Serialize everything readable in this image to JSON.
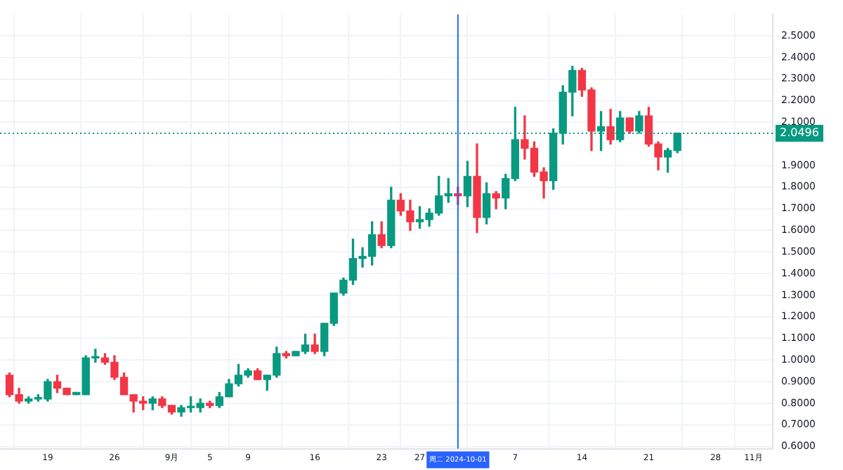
{
  "chart_data": {
    "type": "candlestick",
    "x": [
      "2024-08-15",
      "2024-08-16",
      "2024-08-17",
      "2024-08-18",
      "2024-08-19",
      "2024-08-20",
      "2024-08-21",
      "2024-08-22",
      "2024-08-23",
      "2024-08-24",
      "2024-08-25",
      "2024-08-26",
      "2024-08-27",
      "2024-08-28",
      "2024-08-29",
      "2024-08-30",
      "2024-08-31",
      "2024-09-01",
      "2024-09-02",
      "2024-09-03",
      "2024-09-04",
      "2024-09-05",
      "2024-09-06",
      "2024-09-07",
      "2024-09-08",
      "2024-09-09",
      "2024-09-10",
      "2024-09-11",
      "2024-09-12",
      "2024-09-13",
      "2024-09-14",
      "2024-09-15",
      "2024-09-16",
      "2024-09-17",
      "2024-09-18",
      "2024-09-19",
      "2024-09-20",
      "2024-09-21",
      "2024-09-22",
      "2024-09-23",
      "2024-09-24",
      "2024-09-25",
      "2024-09-26",
      "2024-09-27",
      "2024-09-28",
      "2024-09-29",
      "2024-09-30",
      "2024-10-01",
      "2024-10-02",
      "2024-10-03",
      "2024-10-04",
      "2024-10-05",
      "2024-10-06",
      "2024-10-07",
      "2024-10-08",
      "2024-10-09",
      "2024-10-10",
      "2024-10-11",
      "2024-10-12",
      "2024-10-13",
      "2024-10-14",
      "2024-10-15",
      "2024-10-16",
      "2024-10-17",
      "2024-10-18",
      "2024-10-19",
      "2024-10-20",
      "2024-10-21",
      "2024-10-22",
      "2024-10-23",
      "2024-10-24"
    ],
    "ohlc": [
      [
        0.93,
        0.94,
        0.83,
        0.84
      ],
      [
        0.84,
        0.87,
        0.8,
        0.81
      ],
      [
        0.81,
        0.83,
        0.8,
        0.82
      ],
      [
        0.82,
        0.84,
        0.81,
        0.82
      ],
      [
        0.82,
        0.91,
        0.81,
        0.9
      ],
      [
        0.9,
        0.93,
        0.85,
        0.87
      ],
      [
        0.87,
        0.87,
        0.84,
        0.84
      ],
      [
        0.84,
        0.85,
        0.84,
        0.85
      ],
      [
        0.84,
        1.02,
        0.84,
        1.01
      ],
      [
        1.01,
        1.05,
        0.99,
        1.01
      ],
      [
        1.01,
        1.03,
        0.98,
        0.99
      ],
      [
        0.99,
        1.02,
        0.91,
        0.92
      ],
      [
        0.92,
        0.94,
        0.84,
        0.84
      ],
      [
        0.84,
        0.84,
        0.76,
        0.81
      ],
      [
        0.81,
        0.83,
        0.77,
        0.8
      ],
      [
        0.8,
        0.83,
        0.77,
        0.82
      ],
      [
        0.82,
        0.83,
        0.78,
        0.79
      ],
      [
        0.79,
        0.79,
        0.75,
        0.76
      ],
      [
        0.76,
        0.79,
        0.74,
        0.78
      ],
      [
        0.78,
        0.83,
        0.76,
        0.78
      ],
      [
        0.78,
        0.82,
        0.76,
        0.8
      ],
      [
        0.8,
        0.81,
        0.78,
        0.79
      ],
      [
        0.79,
        0.85,
        0.78,
        0.83
      ],
      [
        0.83,
        0.91,
        0.83,
        0.89
      ],
      [
        0.89,
        0.98,
        0.88,
        0.93
      ],
      [
        0.93,
        0.96,
        0.92,
        0.95
      ],
      [
        0.95,
        0.96,
        0.91,
        0.91
      ],
      [
        0.91,
        0.93,
        0.86,
        0.93
      ],
      [
        0.93,
        1.06,
        0.92,
        1.03
      ],
      [
        1.03,
        1.04,
        1.01,
        1.02
      ],
      [
        1.02,
        1.04,
        1.02,
        1.04
      ],
      [
        1.04,
        1.12,
        1.03,
        1.07
      ],
      [
        1.07,
        1.12,
        1.03,
        1.04
      ],
      [
        1.04,
        1.17,
        1.02,
        1.17
      ],
      [
        1.17,
        1.31,
        1.16,
        1.31
      ],
      [
        1.31,
        1.38,
        1.3,
        1.37
      ],
      [
        1.37,
        1.56,
        1.35,
        1.47
      ],
      [
        1.47,
        1.52,
        1.43,
        1.48
      ],
      [
        1.48,
        1.64,
        1.44,
        1.58
      ],
      [
        1.58,
        1.64,
        1.52,
        1.53
      ],
      [
        1.53,
        1.8,
        1.52,
        1.74
      ],
      [
        1.74,
        1.77,
        1.67,
        1.69
      ],
      [
        1.69,
        1.74,
        1.6,
        1.64
      ],
      [
        1.64,
        1.71,
        1.61,
        1.65
      ],
      [
        1.65,
        1.7,
        1.62,
        1.68
      ],
      [
        1.68,
        1.85,
        1.67,
        1.76
      ],
      [
        1.76,
        1.84,
        1.73,
        1.77
      ],
      [
        1.77,
        1.8,
        1.72,
        1.76
      ],
      [
        1.76,
        1.92,
        1.71,
        1.85
      ],
      [
        1.85,
        2.0,
        1.59,
        1.66
      ],
      [
        1.66,
        1.82,
        1.63,
        1.77
      ],
      [
        1.77,
        1.78,
        1.7,
        1.75
      ],
      [
        1.75,
        1.86,
        1.7,
        1.84
      ],
      [
        1.84,
        2.17,
        1.83,
        2.02
      ],
      [
        2.02,
        2.13,
        1.93,
        1.98
      ],
      [
        1.98,
        2.01,
        1.85,
        1.87
      ],
      [
        1.87,
        1.89,
        1.75,
        1.83
      ],
      [
        1.83,
        2.07,
        1.79,
        2.05
      ],
      [
        2.05,
        2.27,
        2.0,
        2.24
      ],
      [
        2.24,
        2.36,
        2.13,
        2.34
      ],
      [
        2.34,
        2.35,
        2.22,
        2.25
      ],
      [
        2.25,
        2.26,
        1.97,
        2.06
      ],
      [
        2.06,
        2.15,
        1.97,
        2.08
      ],
      [
        2.08,
        2.16,
        2.0,
        2.02
      ],
      [
        2.02,
        2.15,
        2.01,
        2.12
      ],
      [
        2.12,
        2.12,
        2.05,
        2.06
      ],
      [
        2.06,
        2.15,
        2.05,
        2.13
      ],
      [
        2.13,
        2.17,
        1.99,
        2.0
      ],
      [
        2.0,
        2.01,
        1.88,
        1.94
      ],
      [
        1.94,
        1.98,
        1.87,
        1.97
      ],
      [
        1.97,
        2.05,
        1.96,
        2.05
      ]
    ],
    "colors": [
      "#f23645",
      "#f23645",
      "#089981",
      "#089981",
      "#089981",
      "#f23645",
      "#f23645",
      "#089981",
      "#089981",
      "#089981",
      "#f23645",
      "#f23645",
      "#f23645",
      "#f23645",
      "#f23645",
      "#089981",
      "#f23645",
      "#f23645",
      "#089981",
      "#089981",
      "#089981",
      "#f23645",
      "#089981",
      "#089981",
      "#089981",
      "#089981",
      "#f23645",
      "#089981",
      "#089981",
      "#f23645",
      "#089981",
      "#089981",
      "#f23645",
      "#089981",
      "#089981",
      "#089981",
      "#089981",
      "#089981",
      "#089981",
      "#f23645",
      "#089981",
      "#f23645",
      "#f23645",
      "#089981",
      "#089981",
      "#089981",
      "#089981",
      "#f23645",
      "#089981",
      "#f23645",
      "#089981",
      "#f23645",
      "#089981",
      "#089981",
      "#f23645",
      "#f23645",
      "#f23645",
      "#089981",
      "#089981",
      "#089981",
      "#f23645",
      "#f23645",
      "#089981",
      "#f23645",
      "#089981",
      "#f23645",
      "#089981",
      "#f23645",
      "#f23645",
      "#089981",
      "#089981"
    ],
    "xlim": [
      "2024-08-14",
      "2024-11-03"
    ],
    "xticks": [
      {
        "value": "2024-08-19",
        "label": "19"
      },
      {
        "value": "2024-08-26",
        "label": "26"
      },
      {
        "value": "2024-09-01",
        "label": "9月"
      },
      {
        "value": "2024-09-05",
        "label": "5"
      },
      {
        "value": "2024-09-09",
        "label": "9"
      },
      {
        "value": "2024-09-16",
        "label": "16"
      },
      {
        "value": "2024-09-23",
        "label": "23"
      },
      {
        "value": "2024-09-27",
        "label": "27"
      },
      {
        "value": "2024-10-07",
        "label": "7"
      },
      {
        "value": "2024-10-14",
        "label": "14"
      },
      {
        "value": "2024-10-21",
        "label": "21"
      },
      {
        "value": "2024-10-28",
        "label": "28"
      },
      {
        "value": "2024-11-01",
        "label": "11月"
      }
    ],
    "ylim": [
      0.59,
      2.6
    ],
    "yticks": [
      {
        "value": 0.6,
        "label": "0.6000"
      },
      {
        "value": 0.7,
        "label": "0.7000"
      },
      {
        "value": 0.8,
        "label": "0.8000"
      },
      {
        "value": 0.9,
        "label": "0.9000"
      },
      {
        "value": 1.0,
        "label": "1.0000"
      },
      {
        "value": 1.1,
        "label": "1.1000"
      },
      {
        "value": 1.2,
        "label": "1.2000"
      },
      {
        "value": 1.3,
        "label": "1.3000"
      },
      {
        "value": 1.4,
        "label": "1.4000"
      },
      {
        "value": 1.5,
        "label": "1.5000"
      },
      {
        "value": 1.6,
        "label": "1.6000"
      },
      {
        "value": 1.7,
        "label": "1.7000"
      },
      {
        "value": 1.8,
        "label": "1.8000"
      },
      {
        "value": 1.9,
        "label": "1.9000"
      },
      {
        "value": 2.1,
        "label": "2.1000"
      },
      {
        "value": 2.2,
        "label": "2.2000"
      },
      {
        "value": 2.3,
        "label": "2.3000"
      },
      {
        "value": 2.4,
        "label": "2.4000"
      },
      {
        "value": 2.5,
        "label": "2.5000"
      }
    ],
    "ref_lines": [
      {
        "axis": "x",
        "value": "2024-10-01",
        "label": "周二 2024-10-01",
        "color": "#2962ff"
      },
      {
        "axis": "y",
        "value": 2.0496,
        "label": "2.0496",
        "color": "#089981",
        "line_style": "dotted"
      }
    ],
    "grid": true
  }
}
